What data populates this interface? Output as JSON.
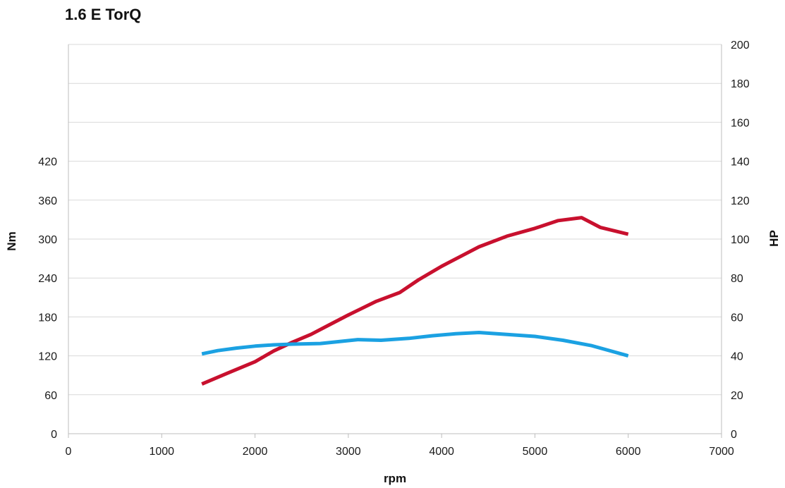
{
  "chart_data": {
    "type": "line",
    "title": "1.6 E TorQ",
    "xlabel": "rpm",
    "ylabel_left": "Nm",
    "ylabel_right": "HP",
    "xlim": [
      0,
      7000
    ],
    "ylim_left": [
      0,
      600
    ],
    "ylim_right": [
      0,
      200
    ],
    "x_ticks": [
      "0",
      "1000",
      "2000",
      "3000",
      "4000",
      "5000",
      "6000",
      "7000"
    ],
    "y_left_ticks": [
      "0",
      "60",
      "120",
      "180",
      "240",
      "300",
      "360",
      "420"
    ],
    "y_right_ticks": [
      "0",
      "20",
      "40",
      "60",
      "80",
      "100",
      "120",
      "140",
      "160",
      "180",
      "200"
    ],
    "grid": true,
    "series": [
      {
        "axis": "right",
        "color": "#c8102e",
        "x": [
          1430,
          1700,
          2000,
          2200,
          2400,
          2600,
          2800,
          3000,
          3300,
          3550,
          3750,
          4000,
          4200,
          4400,
          4700,
          5000,
          5250,
          5500,
          5700,
          6000
        ],
        "values": [
          25.5,
          31,
          37,
          42.5,
          47,
          51,
          56,
          61,
          68,
          72.5,
          79,
          86,
          91,
          96,
          101.5,
          105.5,
          109.5,
          111,
          106,
          102.5
        ]
      },
      {
        "axis": "left",
        "color": "#1ba1e2",
        "x": [
          1430,
          1600,
          1800,
          2000,
          2200,
          2400,
          2700,
          2900,
          3100,
          3350,
          3650,
          3900,
          4150,
          4400,
          4700,
          5000,
          5300,
          5600,
          6000
        ],
        "values": [
          123,
          128,
          132,
          135,
          137,
          138,
          139,
          142,
          145,
          144,
          147,
          151,
          154,
          156,
          153,
          150,
          144,
          136,
          120
        ]
      }
    ]
  }
}
